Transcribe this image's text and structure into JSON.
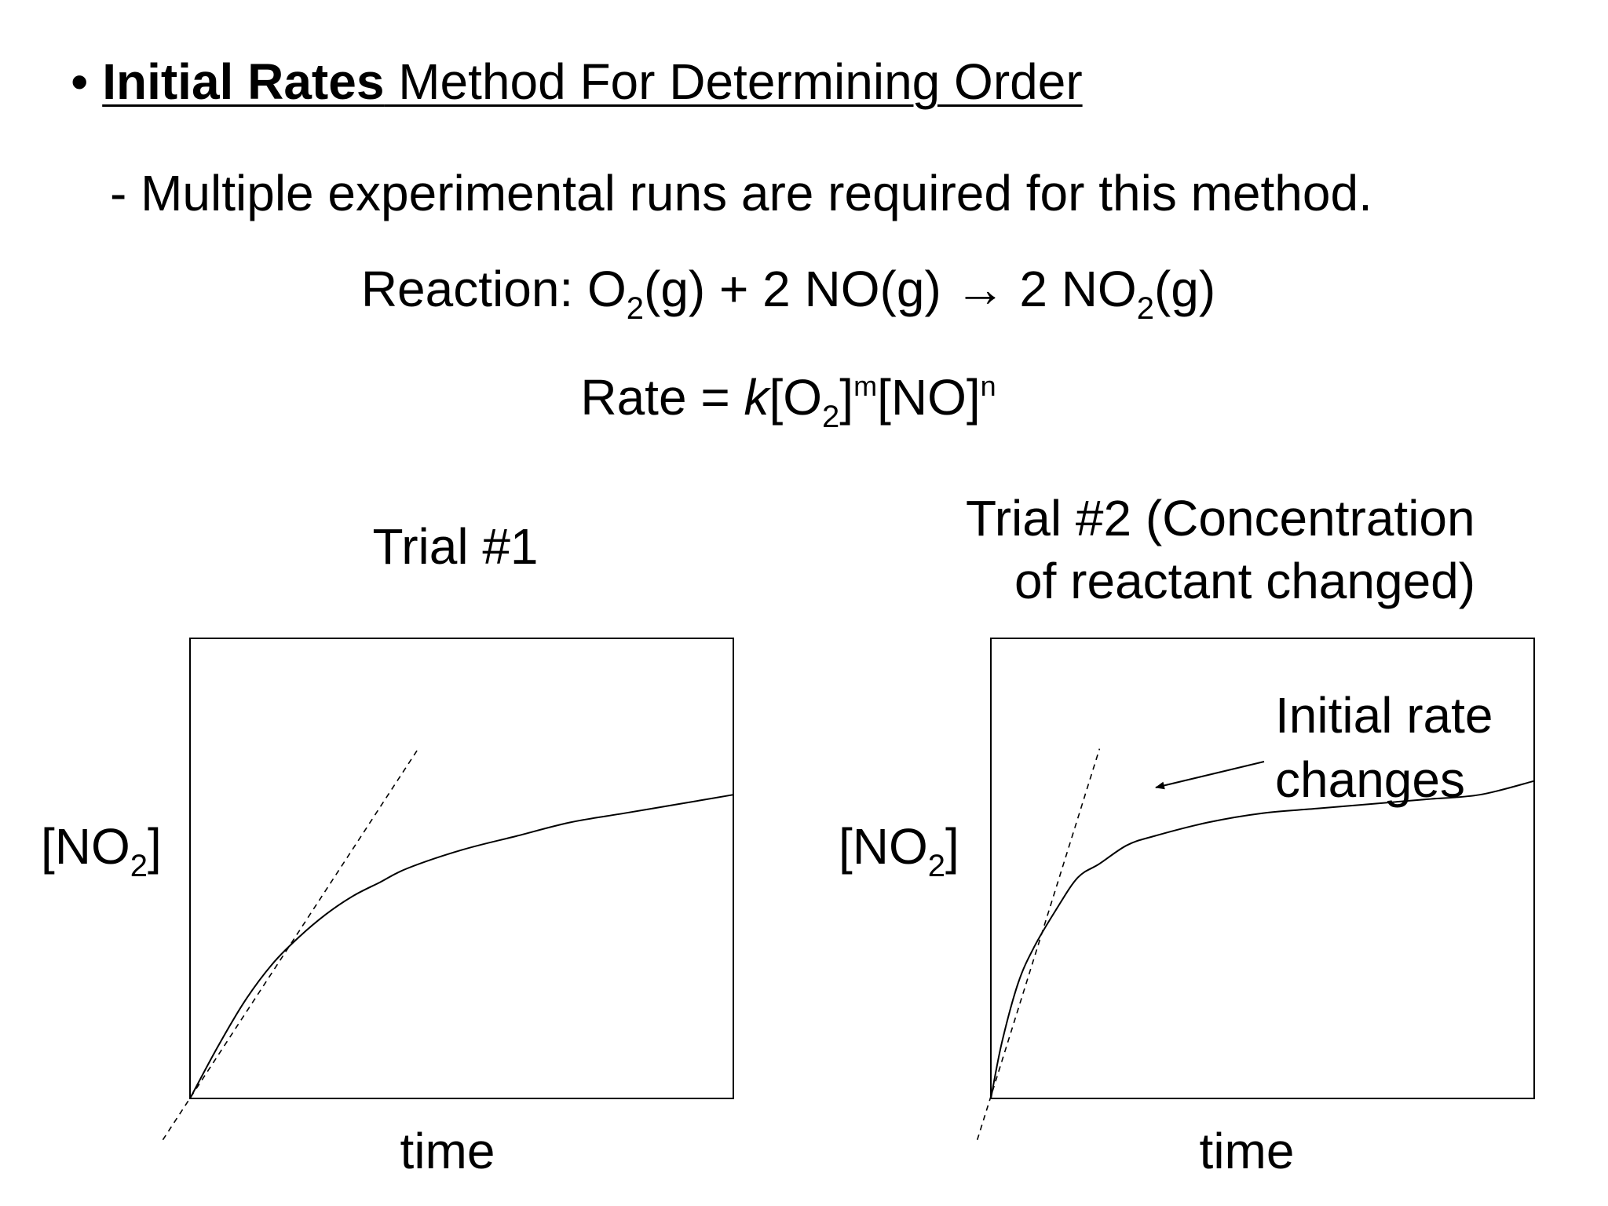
{
  "slide": {
    "bullet": "•",
    "heading_bold": "Initial Rates",
    "heading_rest": " Method For Determining Order",
    "subline": "- Multiple experimental runs are required for this method.",
    "reaction": {
      "prefix": "Reaction: O",
      "sub1": "2",
      "mid": "(g) + 2 NO(g) → 2 NO",
      "sub2": "2",
      "suffix": "(g)"
    },
    "rate_law": {
      "prefix": "Rate = ",
      "k": "k",
      "open": "[O",
      "sub": "2",
      "close": "]",
      "exp_m": "m",
      "no": "[NO]",
      "exp_n": "n"
    }
  },
  "chart_data": [
    {
      "type": "line",
      "title": "Trial #1",
      "xlabel": "time",
      "ylabel_main": "[NO",
      "ylabel_sub": "2",
      "ylabel_end": "]",
      "xlim": [
        0,
        1
      ],
      "ylim": [
        0,
        1
      ],
      "series": [
        {
          "style": "solid",
          "x": [
            0,
            0.05,
            0.1,
            0.15,
            0.2,
            0.25,
            0.3,
            0.35,
            0.4,
            0.5,
            0.6,
            0.7,
            0.8,
            0.9,
            1.0
          ],
          "y": [
            0,
            0.11,
            0.21,
            0.29,
            0.35,
            0.4,
            0.44,
            0.47,
            0.5,
            0.54,
            0.57,
            0.6,
            0.62,
            0.64,
            0.66
          ]
        },
        {
          "style": "dashed",
          "x": [
            -0.05,
            0.42
          ],
          "y": [
            -0.09,
            0.76
          ]
        }
      ]
    },
    {
      "type": "line",
      "title_line1": "Trial #2 (Concentration",
      "title_line2": "of reactant changed)",
      "xlabel": "time",
      "ylabel_main": "[NO",
      "ylabel_sub": "2",
      "ylabel_end": "]",
      "annotation_line1": "Initial rate",
      "annotation_line2": "changes",
      "xlim": [
        0,
        1
      ],
      "ylim": [
        0,
        1
      ],
      "series": [
        {
          "style": "solid",
          "x": [
            0,
            0.02,
            0.05,
            0.08,
            0.12,
            0.16,
            0.2,
            0.25,
            0.3,
            0.4,
            0.5,
            0.6,
            0.7,
            0.8,
            0.9,
            1.0
          ],
          "y": [
            0,
            0.12,
            0.25,
            0.33,
            0.41,
            0.48,
            0.51,
            0.55,
            0.57,
            0.6,
            0.62,
            0.63,
            0.64,
            0.65,
            0.66,
            0.69
          ]
        },
        {
          "style": "dashed",
          "x": [
            -0.025,
            0.2
          ],
          "y": [
            -0.09,
            0.76
          ]
        }
      ]
    }
  ]
}
